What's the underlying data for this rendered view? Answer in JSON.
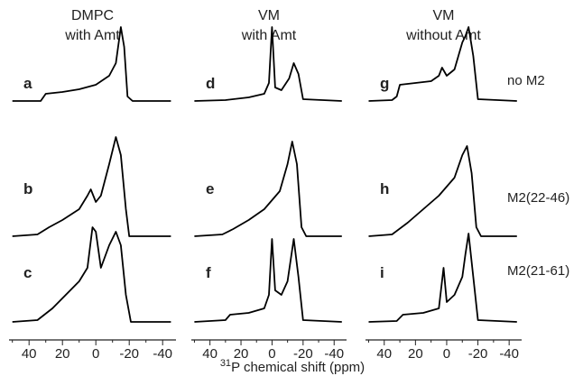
{
  "chart_data": [
    {
      "type": "line",
      "title": [
        "DMPC",
        "with Amt"
      ],
      "color": "#000000",
      "xlim": [
        52,
        -48
      ],
      "xticks": [
        40,
        20,
        0,
        -20,
        -40
      ],
      "xminor": [
        50,
        30,
        10,
        -10,
        -30
      ],
      "series": [
        {
          "name": "a",
          "x": [
            50,
            33,
            30,
            20,
            10,
            0,
            -8,
            -12,
            -15,
            -17,
            -19,
            -22,
            -45
          ],
          "values": [
            0,
            0,
            0.08,
            0.1,
            0.13,
            0.18,
            0.28,
            0.42,
            0.82,
            0.6,
            0.05,
            0,
            0
          ]
        },
        {
          "name": "b",
          "x": [
            50,
            35,
            28,
            20,
            10,
            5,
            3,
            0,
            -3,
            -8,
            -12,
            -15,
            -18,
            -20,
            -45
          ],
          "values": [
            0,
            0.02,
            0.1,
            0.18,
            0.3,
            0.45,
            0.52,
            0.38,
            0.45,
            0.8,
            1.1,
            0.9,
            0.3,
            0,
            0
          ]
        },
        {
          "name": "c",
          "x": [
            50,
            35,
            26,
            18,
            10,
            5,
            2,
            0,
            -3,
            -8,
            -12,
            -15,
            -18,
            -21,
            -45
          ],
          "values": [
            0,
            0.02,
            0.15,
            0.3,
            0.45,
            0.6,
            1.05,
            1.0,
            0.6,
            0.85,
            1.0,
            0.85,
            0.3,
            0,
            0
          ]
        }
      ]
    },
    {
      "type": "line",
      "title": [
        "VM",
        "with Amt"
      ],
      "color": "#000000",
      "xlim": [
        52,
        -48
      ],
      "xticks": [
        40,
        20,
        0,
        -20,
        -40
      ],
      "xminor": [
        50,
        30,
        10,
        -10,
        -30
      ],
      "series": [
        {
          "name": "d",
          "x": [
            50,
            30,
            15,
            5,
            2,
            0,
            -2,
            -6,
            -11,
            -14,
            -17,
            -20,
            -45
          ],
          "values": [
            0,
            0.01,
            0.04,
            0.08,
            0.2,
            0.82,
            0.15,
            0.12,
            0.25,
            0.42,
            0.3,
            0.02,
            0
          ]
        },
        {
          "name": "e",
          "x": [
            50,
            32,
            25,
            15,
            5,
            -5,
            -10,
            -13,
            -16,
            -19,
            -22,
            -45
          ],
          "values": [
            0,
            0.02,
            0.08,
            0.18,
            0.3,
            0.5,
            0.8,
            1.05,
            0.8,
            0.1,
            0,
            0
          ]
        },
        {
          "name": "f",
          "x": [
            50,
            30,
            27,
            15,
            5,
            2,
            0,
            -2,
            -6,
            -10,
            -14,
            -17,
            -20,
            -45
          ],
          "values": [
            0,
            0.02,
            0.08,
            0.1,
            0.15,
            0.3,
            0.92,
            0.35,
            0.3,
            0.45,
            0.92,
            0.5,
            0.02,
            0
          ]
        }
      ]
    },
    {
      "type": "line",
      "title": [
        "VM",
        "without Amt"
      ],
      "color": "#000000",
      "xlim": [
        52,
        -48
      ],
      "xticks": [
        40,
        20,
        0,
        -20,
        -40
      ],
      "xminor": [
        50,
        30,
        10,
        -10,
        -30
      ],
      "series": [
        {
          "name": "g",
          "x": [
            50,
            35,
            32,
            30,
            20,
            10,
            5,
            3,
            0,
            -5,
            -10,
            -12,
            -14,
            -17,
            -20,
            -45
          ],
          "values": [
            0,
            0.01,
            0.05,
            0.18,
            0.2,
            0.22,
            0.28,
            0.37,
            0.28,
            0.35,
            0.65,
            0.72,
            0.82,
            0.5,
            0.02,
            0
          ]
        },
        {
          "name": "h",
          "x": [
            50,
            35,
            25,
            15,
            5,
            -5,
            -10,
            -13,
            -16,
            -19,
            -22,
            -45
          ],
          "values": [
            0,
            0.02,
            0.15,
            0.3,
            0.45,
            0.65,
            0.9,
            1.0,
            0.7,
            0.1,
            0,
            0
          ]
        },
        {
          "name": "i",
          "x": [
            50,
            32,
            28,
            15,
            5,
            2,
            0,
            -5,
            -10,
            -12,
            -14,
            -17,
            -20,
            -45
          ],
          "values": [
            0,
            0.01,
            0.08,
            0.1,
            0.15,
            0.6,
            0.22,
            0.3,
            0.5,
            0.75,
            0.98,
            0.5,
            0.02,
            0
          ]
        }
      ]
    }
  ],
  "rows": [
    "no M2",
    "M2(22-46)",
    "M2(21-61)"
  ],
  "xlabel_sup": "31",
  "xlabel": "P chemical shift (ppm)"
}
